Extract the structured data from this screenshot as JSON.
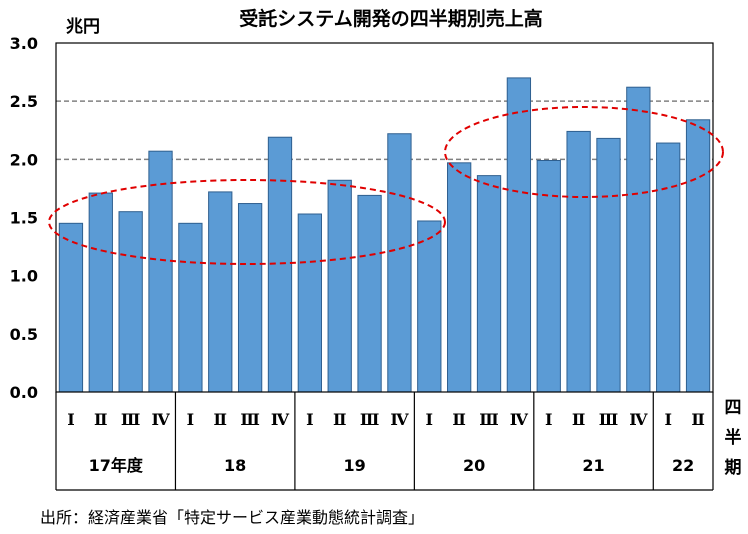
{
  "chart_data": {
    "type": "bar",
    "title": "受託システム開発の四半期別売上高",
    "ylabel": "兆円",
    "xlabel": "四半期",
    "ylim": [
      0,
      3.0
    ],
    "yticks": [
      "0.0",
      "0.5",
      "1.0",
      "1.5",
      "2.0",
      "2.5",
      "3.0"
    ],
    "dashed_gridlines": [
      2.0,
      2.5
    ],
    "quarter_labels": [
      "Ⅰ",
      "Ⅱ",
      "Ⅲ",
      "Ⅳ",
      "Ⅰ",
      "Ⅱ",
      "Ⅲ",
      "Ⅳ",
      "Ⅰ",
      "Ⅱ",
      "Ⅲ",
      "Ⅳ",
      "Ⅰ",
      "Ⅱ",
      "Ⅲ",
      "Ⅳ",
      "Ⅰ",
      "Ⅱ",
      "Ⅲ",
      "Ⅳ",
      "Ⅰ",
      "Ⅱ"
    ],
    "years": [
      {
        "label": "17年度",
        "count": 4
      },
      {
        "label": "18",
        "count": 4
      },
      {
        "label": "19",
        "count": 4
      },
      {
        "label": "20",
        "count": 4
      },
      {
        "label": "21",
        "count": 4
      },
      {
        "label": "22",
        "count": 2
      }
    ],
    "values": [
      1.45,
      1.71,
      1.55,
      2.07,
      1.45,
      1.72,
      1.62,
      2.19,
      1.53,
      1.82,
      1.69,
      2.22,
      1.47,
      1.97,
      1.86,
      2.7,
      1.99,
      2.24,
      2.18,
      2.62,
      2.14,
      2.34
    ],
    "annotations": [
      {
        "shape": "dashed-ellipse",
        "covers": "17年度Ⅰ–20Ⅰ",
        "color": "#e00000"
      },
      {
        "shape": "dashed-ellipse",
        "covers": "20Ⅱ–22Ⅱ",
        "color": "#e00000"
      }
    ],
    "bar_color": "#5b9bd5",
    "grid": "dashed horizontal at 2.0 and 2.5",
    "source": "出所：経済産業省「特定サービス産業動態統計調査」"
  }
}
